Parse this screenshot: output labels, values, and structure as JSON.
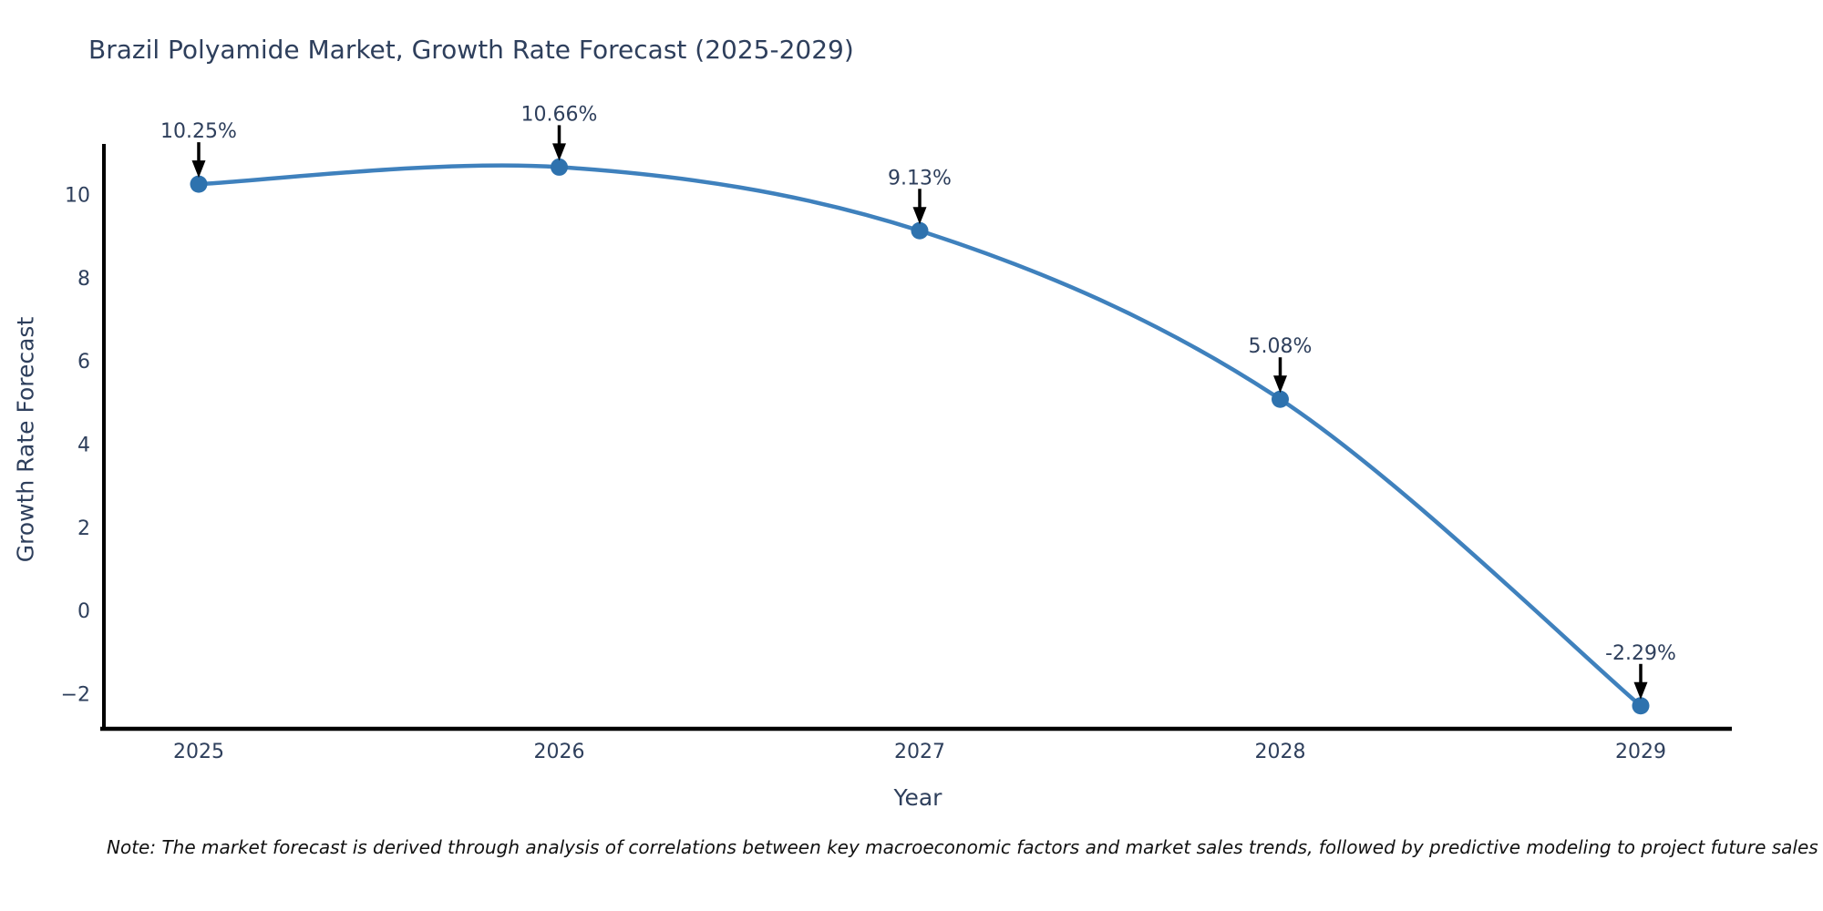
{
  "chart_data": {
    "type": "line",
    "title": "Brazil Polyamide Market, Growth Rate Forecast (2025-2029)",
    "xlabel": "Year",
    "ylabel": "Growth Rate Forecast",
    "x": [
      "2025",
      "2026",
      "2027",
      "2028",
      "2029"
    ],
    "values": [
      10.25,
      10.66,
      9.13,
      5.08,
      -2.29
    ],
    "point_labels": [
      "10.25%",
      "10.66%",
      "9.13%",
      "5.08%",
      "-2.29%"
    ],
    "ytick_values": [
      10,
      8,
      6,
      4,
      2,
      0,
      -2
    ],
    "ytick_labels": [
      "10",
      "8",
      "6",
      "4",
      "2",
      "0",
      "−2"
    ],
    "ylim": [
      -2.85,
      11.2
    ],
    "grid": false,
    "legend": "none",
    "line_color": "#3f81bd",
    "marker_color": "#2e72ae",
    "axis_color": "#000000",
    "text_color": "#2e3f5c",
    "annotation_arrow_color": "#000000",
    "background_color": "#ffffff",
    "note": "Note: The market forecast is derived through analysis of correlations between key macroeconomic factors and market sales trends, followed by predictive modeling to project future sales"
  }
}
